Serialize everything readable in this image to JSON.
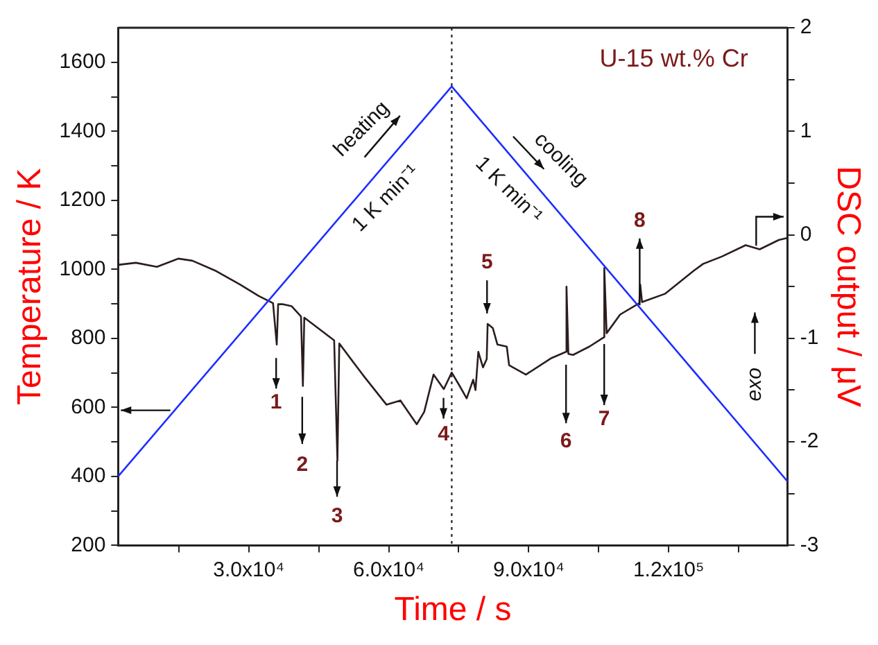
{
  "chart_data": {
    "type": "line",
    "xlabel": "Time / s",
    "ylabel": "Temperature / K",
    "y2label": "DSC output / μV",
    "xlim": [
      2000,
      145500
    ],
    "xticks": [
      {
        "value": 15000,
        "label": null
      },
      {
        "value": 30000,
        "label": "3.0x10⁴"
      },
      {
        "value": 45000,
        "label": null
      },
      {
        "value": 60000,
        "label": "6.0x10⁴"
      },
      {
        "value": 75000,
        "label": null
      },
      {
        "value": 90000,
        "label": "9.0x10⁴"
      },
      {
        "value": 105000,
        "label": null
      },
      {
        "value": 120000,
        "label": "1.2x10⁵"
      },
      {
        "value": 135000,
        "label": null
      }
    ],
    "ylim": [
      200,
      1700
    ],
    "yticks": [
      200,
      {
        "value": 300,
        "label": null
      },
      400,
      {
        "value": 500,
        "label": null
      },
      600,
      {
        "value": 700,
        "label": null
      },
      800,
      {
        "value": 900,
        "label": null
      },
      1000,
      {
        "value": 1100,
        "label": null
      },
      1200,
      {
        "value": 1300,
        "label": null
      },
      1400,
      {
        "value": 1500,
        "label": null
      },
      1600
    ],
    "y2lim": [
      -3,
      2
    ],
    "y2ticks": [
      -3,
      {
        "value": -2.5,
        "label": null
      },
      -2,
      {
        "value": -1.5,
        "label": null
      },
      -1,
      {
        "value": -0.5,
        "label": null
      },
      0,
      {
        "value": 0.5,
        "label": null
      },
      1,
      {
        "value": 1.5,
        "label": null
      },
      2
    ],
    "grid": false,
    "legend": false,
    "marker": "none",
    "line_style": "solid",
    "series": [
      {
        "color": "#1f2fff",
        "x": [
          2000,
          73500,
          145500
        ],
        "values": [
          400,
          1530,
          385
        ]
      },
      {
        "color": "#2b1d1d",
        "axis": "y2",
        "x": [
          2000,
          5800,
          10300,
          14900,
          17900,
          23000,
          28100,
          32100,
          35200,
          36000,
          36300,
          37200,
          39200,
          41200,
          41600,
          41900,
          48300,
          49000,
          49400,
          54400,
          59500,
          62500,
          66000,
          67600,
          69600,
          71800,
          73500,
          75200,
          76700,
          78100,
          78600,
          79200,
          80200,
          81000,
          81200,
          82300,
          83300,
          85300,
          85800,
          89400,
          94900,
          98000,
          98100,
          98500,
          99500,
          103000,
          106100,
          106200,
          106700,
          109600,
          113700,
          113900,
          114300,
          119200,
          125300,
          127400,
          131400,
          136500,
          139500,
          143600,
          145500
        ],
        "values": [
          -0.29,
          -0.27,
          -0.31,
          -0.23,
          -0.25,
          -0.35,
          -0.48,
          -0.59,
          -0.66,
          -1.06,
          -0.67,
          -0.67,
          -0.69,
          -0.79,
          -1.46,
          -0.8,
          -1.02,
          -2.18,
          -1.05,
          -1.35,
          -1.64,
          -1.6,
          -1.83,
          -1.71,
          -1.35,
          -1.49,
          -1.33,
          -1.46,
          -1.58,
          -1.4,
          -1.5,
          -1.13,
          -1.28,
          -1.2,
          -0.86,
          -0.9,
          -1.06,
          -1.08,
          -1.26,
          -1.35,
          -1.19,
          -1.13,
          -0.5,
          -1.15,
          -1.16,
          -1.08,
          -0.99,
          -0.32,
          -0.95,
          -0.77,
          -0.66,
          -0.48,
          -0.65,
          -0.57,
          -0.35,
          -0.28,
          -0.21,
          -0.1,
          -0.14,
          -0.05,
          -0.03
        ]
      }
    ],
    "ref_lines": [
      {
        "axis": "x",
        "value": 73500,
        "label": null,
        "color": "#333333",
        "line_style": "dotted"
      }
    ],
    "annotations": [
      "U-15 wt.% Cr",
      "heating",
      "1 K min⁻¹",
      "cooling",
      "1 K min⁻¹",
      "exo",
      "1",
      "2",
      "3",
      "4",
      "5",
      "6",
      "7",
      "8"
    ]
  }
}
